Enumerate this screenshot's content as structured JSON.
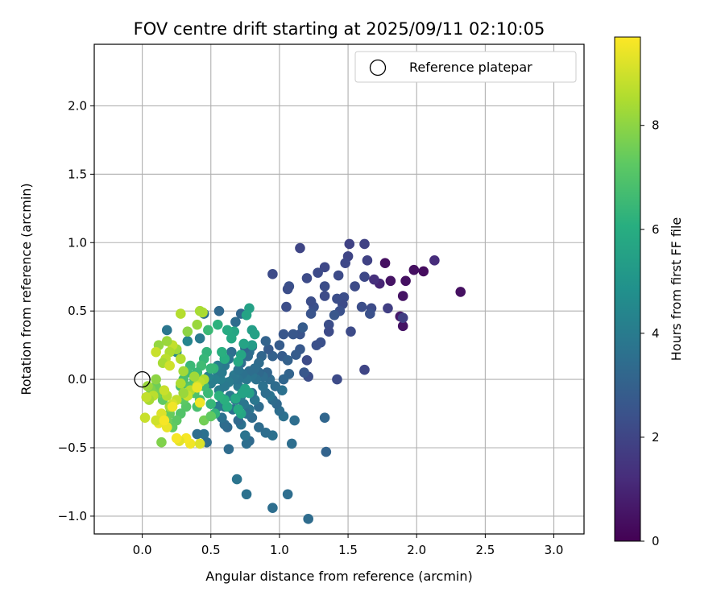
{
  "chart_data": {
    "type": "scatter",
    "title": "FOV centre drift starting at 2025/09/11 02:10:05",
    "xlabel": "Angular distance from reference (arcmin)",
    "ylabel": "Rotation from reference (arcmin)",
    "xlim": [
      -0.35,
      3.22
    ],
    "ylim": [
      -1.13,
      2.45
    ],
    "xticks": [
      "0.0",
      "0.5",
      "1.0",
      "1.5",
      "2.0",
      "2.5",
      "3.0"
    ],
    "yticks": [
      "−1.0",
      "−0.5",
      "0.0",
      "0.5",
      "1.0",
      "1.5",
      "2.0"
    ],
    "grid": true,
    "legend": {
      "position": "top-right",
      "entries": [
        "Reference platepar"
      ]
    },
    "reference_point": {
      "x": 0.0,
      "y": 0.0,
      "marker": "open-circle"
    },
    "colorbar": {
      "label": "Hours from first FF file",
      "colormap": "viridis",
      "range": [
        0,
        9.7
      ],
      "ticks": [
        "0",
        "2",
        "4",
        "6",
        "8"
      ]
    },
    "points": [
      [
        2.32,
        0.64,
        0.4
      ],
      [
        2.13,
        0.87,
        1.2
      ],
      [
        2.05,
        0.79,
        0.3
      ],
      [
        1.98,
        0.8,
        0.4
      ],
      [
        1.92,
        0.72,
        0.4
      ],
      [
        1.9,
        0.61,
        0.5
      ],
      [
        1.9,
        0.39,
        0.5
      ],
      [
        1.88,
        0.46,
        0.7
      ],
      [
        1.9,
        0.45,
        1.8
      ],
      [
        1.81,
        0.72,
        0.5
      ],
      [
        1.77,
        0.85,
        0.4
      ],
      [
        1.73,
        0.7,
        1.0
      ],
      [
        1.69,
        0.73,
        1.3
      ],
      [
        1.67,
        0.52,
        2.2
      ],
      [
        1.66,
        0.48,
        2.4
      ],
      [
        1.64,
        0.87,
        1.9
      ],
      [
        1.62,
        0.99,
        1.9
      ],
      [
        1.62,
        0.75,
        2.1
      ],
      [
        1.6,
        0.53,
        2.3
      ],
      [
        1.62,
        0.07,
        2.0
      ],
      [
        1.79,
        0.52,
        1.8
      ],
      [
        1.55,
        0.68,
        2.2
      ],
      [
        1.51,
        0.99,
        1.9
      ],
      [
        1.5,
        0.9,
        2.0
      ],
      [
        1.48,
        0.85,
        2.1
      ],
      [
        1.47,
        0.6,
        2.3
      ],
      [
        1.46,
        0.55,
        2.2
      ],
      [
        1.44,
        0.5,
        2.4
      ],
      [
        1.42,
        0.59,
        2.3
      ],
      [
        1.43,
        0.76,
        2.2
      ],
      [
        1.4,
        0.47,
        2.6
      ],
      [
        1.36,
        0.4,
        2.3
      ],
      [
        1.36,
        0.35,
        2.2
      ],
      [
        1.52,
        0.35,
        2.2
      ],
      [
        1.42,
        0.0,
        2.2
      ],
      [
        1.33,
        0.68,
        2.3
      ],
      [
        1.33,
        0.61,
        2.2
      ],
      [
        1.33,
        0.82,
        2.1
      ],
      [
        1.28,
        0.78,
        2.2
      ],
      [
        1.25,
        0.53,
        2.4
      ],
      [
        1.23,
        0.57,
        2.3
      ],
      [
        1.23,
        0.48,
        2.5
      ],
      [
        1.27,
        0.25,
        2.4
      ],
      [
        1.3,
        0.27,
        2.4
      ],
      [
        1.2,
        0.74,
        2.2
      ],
      [
        1.15,
        0.96,
        2.0
      ],
      [
        1.15,
        0.33,
        2.5
      ],
      [
        1.17,
        0.38,
        2.8
      ],
      [
        1.15,
        0.22,
        2.7
      ],
      [
        1.12,
        0.18,
        2.8
      ],
      [
        1.2,
        0.14,
        2.2
      ],
      [
        1.21,
        0.02,
        2.3
      ],
      [
        1.18,
        0.05,
        2.6
      ],
      [
        1.1,
        0.33,
        2.6
      ],
      [
        1.07,
        0.68,
        2.4
      ],
      [
        1.06,
        0.66,
        2.3
      ],
      [
        1.05,
        0.53,
        2.3
      ],
      [
        1.03,
        0.33,
        2.6
      ],
      [
        1.0,
        0.25,
        2.8
      ],
      [
        1.02,
        0.17,
        2.8
      ],
      [
        1.06,
        0.14,
        3.0
      ],
      [
        1.07,
        0.04,
        3.1
      ],
      [
        1.03,
        0.0,
        3.2
      ],
      [
        0.95,
        0.77,
        2.2
      ],
      [
        1.33,
        -0.28,
        3.2
      ],
      [
        1.34,
        -0.53,
        3.1
      ],
      [
        1.21,
        -1.02,
        3.4
      ],
      [
        1.06,
        -0.84,
        3.5
      ],
      [
        0.95,
        -0.94,
        3.5
      ],
      [
        0.76,
        -0.84,
        3.6
      ],
      [
        0.69,
        -0.73,
        3.7
      ],
      [
        1.09,
        -0.47,
        3.5
      ],
      [
        0.95,
        -0.41,
        3.6
      ],
      [
        0.9,
        -0.39,
        3.5
      ],
      [
        0.85,
        -0.35,
        3.4
      ],
      [
        0.78,
        -0.45,
        3.3
      ],
      [
        0.76,
        -0.47,
        3.5
      ],
      [
        0.75,
        -0.41,
        3.7
      ],
      [
        0.72,
        -0.33,
        3.6
      ],
      [
        0.7,
        -0.3,
        3.3
      ],
      [
        0.63,
        -0.51,
        3.4
      ],
      [
        0.62,
        -0.35,
        3.3
      ],
      [
        0.6,
        -0.33,
        3.4
      ],
      [
        0.58,
        -0.28,
        3.6
      ],
      [
        1.11,
        -0.3,
        3.5
      ],
      [
        1.03,
        -0.27,
        3.6
      ],
      [
        1.0,
        -0.23,
        3.5
      ],
      [
        0.98,
        -0.18,
        3.3
      ],
      [
        0.95,
        -0.15,
        3.4
      ],
      [
        0.93,
        -0.12,
        3.7
      ],
      [
        0.9,
        -0.1,
        3.5
      ],
      [
        0.88,
        -0.05,
        3.6
      ],
      [
        0.85,
        -0.2,
        3.4
      ],
      [
        0.82,
        -0.15,
        3.8
      ],
      [
        0.8,
        -0.1,
        3.6
      ],
      [
        0.8,
        -0.28,
        3.4
      ],
      [
        0.78,
        -0.22,
        3.7
      ],
      [
        0.76,
        -0.25,
        3.5
      ],
      [
        0.74,
        -0.18,
        3.8
      ],
      [
        0.72,
        -0.12,
        4.0
      ],
      [
        0.7,
        -0.05,
        3.9
      ],
      [
        0.68,
        -0.15,
        3.7
      ],
      [
        0.66,
        -0.22,
        3.6
      ],
      [
        0.64,
        -0.12,
        3.9
      ],
      [
        0.6,
        -0.2,
        3.8
      ],
      [
        0.58,
        -0.14,
        4.0
      ],
      [
        0.56,
        -0.08,
        4.1
      ],
      [
        0.55,
        -0.2,
        3.9
      ],
      [
        1.02,
        -0.08,
        3.6
      ],
      [
        0.97,
        -0.05,
        3.4
      ],
      [
        0.93,
        0.0,
        3.4
      ],
      [
        0.91,
        0.05,
        3.2
      ],
      [
        0.88,
        0.02,
        3.5
      ],
      [
        0.85,
        0.05,
        3.3
      ],
      [
        0.83,
        0.0,
        3.6
      ],
      [
        0.8,
        0.03,
        3.7
      ],
      [
        0.78,
        0.06,
        3.5
      ],
      [
        0.76,
        0.0,
        3.8
      ],
      [
        0.73,
        0.04,
        3.6
      ],
      [
        0.7,
        0.0,
        3.7
      ],
      [
        0.67,
        0.03,
        3.9
      ],
      [
        0.66,
        0.0,
        3.8
      ],
      [
        0.63,
        -0.02,
        4.0
      ],
      [
        0.6,
        -0.05,
        3.9
      ],
      [
        0.57,
        0.0,
        4.1
      ],
      [
        0.55,
        0.05,
        4.0
      ],
      [
        0.53,
        0.0,
        4.2
      ],
      [
        0.5,
        -0.03,
        4.1
      ],
      [
        0.48,
        0.02,
        4.3
      ],
      [
        0.46,
        -0.05,
        4.2
      ],
      [
        0.95,
        0.17,
        3.0
      ],
      [
        0.92,
        0.22,
        2.8
      ],
      [
        0.9,
        0.28,
        3.1
      ],
      [
        0.87,
        0.17,
        3.2
      ],
      [
        0.85,
        0.12,
        3.4
      ],
      [
        0.82,
        0.08,
        3.5
      ],
      [
        0.8,
        0.24,
        3.3
      ],
      [
        0.78,
        0.2,
        3.6
      ],
      [
        0.77,
        0.17,
        3.4
      ],
      [
        0.75,
        0.23,
        3.2
      ],
      [
        0.72,
        0.12,
        3.5
      ],
      [
        0.7,
        0.07,
        3.7
      ],
      [
        0.68,
        0.42,
        3.4
      ],
      [
        0.65,
        0.2,
        3.5
      ],
      [
        0.63,
        0.15,
        3.7
      ],
      [
        0.6,
        0.1,
        3.9
      ],
      [
        0.58,
        0.05,
        4.0
      ],
      [
        0.55,
        0.1,
        4.1
      ],
      [
        0.72,
        0.48,
        3.2
      ],
      [
        0.56,
        0.5,
        3.3
      ],
      [
        0.45,
        0.48,
        3.5
      ],
      [
        0.42,
        0.3,
        4.0
      ],
      [
        0.33,
        0.28,
        4.4
      ],
      [
        0.25,
        0.2,
        4.5
      ],
      [
        0.18,
        0.36,
        3.8
      ],
      [
        0.45,
        -0.4,
        3.6
      ],
      [
        0.4,
        -0.4,
        3.5
      ],
      [
        0.47,
        -0.46,
        3.4
      ],
      [
        0.78,
        0.52,
        5.5
      ],
      [
        0.76,
        0.47,
        5.6
      ],
      [
        0.8,
        0.36,
        5.4
      ],
      [
        0.82,
        0.33,
        5.5
      ],
      [
        0.8,
        0.25,
        5.3
      ],
      [
        0.74,
        0.26,
        5.6
      ],
      [
        0.72,
        0.18,
        5.7
      ],
      [
        0.7,
        0.13,
        5.8
      ],
      [
        0.67,
        0.35,
        5.7
      ],
      [
        0.65,
        0.3,
        5.8
      ],
      [
        0.62,
        0.36,
        5.9
      ],
      [
        0.6,
        0.15,
        6.0
      ],
      [
        0.58,
        0.2,
        6.1
      ],
      [
        0.55,
        0.4,
        6.2
      ],
      [
        0.52,
        0.08,
        6.3
      ],
      [
        0.5,
        0.08,
        6.4
      ],
      [
        0.48,
        0.36,
        6.5
      ],
      [
        0.47,
        0.2,
        6.3
      ],
      [
        0.45,
        0.15,
        6.4
      ],
      [
        0.43,
        0.1,
        6.6
      ],
      [
        0.4,
        0.05,
        6.5
      ],
      [
        0.38,
        0.0,
        6.7
      ],
      [
        0.35,
        0.1,
        6.5
      ],
      [
        0.33,
        0.05,
        6.6
      ],
      [
        0.3,
        0.0,
        6.8
      ],
      [
        0.28,
        -0.05,
        6.7
      ],
      [
        0.78,
        -0.1,
        5.5
      ],
      [
        0.75,
        -0.07,
        5.6
      ],
      [
        0.72,
        -0.25,
        5.7
      ],
      [
        0.7,
        -0.22,
        5.9
      ],
      [
        0.68,
        -0.14,
        5.8
      ],
      [
        0.73,
        -0.1,
        5.6
      ],
      [
        0.62,
        -0.2,
        6.0
      ],
      [
        0.6,
        -0.15,
        6.1
      ],
      [
        0.56,
        -0.12,
        6.2
      ],
      [
        0.53,
        -0.25,
        6.3
      ],
      [
        0.5,
        -0.18,
        6.4
      ],
      [
        0.48,
        -0.1,
        6.5
      ],
      [
        0.45,
        -0.05,
        6.6
      ],
      [
        0.42,
        -0.15,
        6.7
      ],
      [
        0.4,
        -0.2,
        6.8
      ],
      [
        0.38,
        -0.1,
        6.9
      ],
      [
        0.35,
        -0.05,
        7.0
      ],
      [
        0.32,
        -0.2,
        7.1
      ],
      [
        0.3,
        -0.15,
        7.2
      ],
      [
        0.28,
        -0.25,
        7.0
      ],
      [
        0.25,
        -0.3,
        7.2
      ],
      [
        0.22,
        -0.35,
        7.3
      ],
      [
        0.2,
        -0.25,
        7.4
      ],
      [
        0.18,
        -0.3,
        7.5
      ],
      [
        0.15,
        -0.15,
        7.3
      ],
      [
        0.12,
        -0.1,
        7.6
      ],
      [
        0.1,
        -0.05,
        7.5
      ],
      [
        0.08,
        -0.1,
        7.7
      ],
      [
        0.06,
        -0.07,
        7.8
      ],
      [
        0.44,
        0.49,
        8.5
      ],
      [
        0.42,
        0.5,
        8.4
      ],
      [
        0.4,
        0.4,
        8.2
      ],
      [
        0.33,
        0.35,
        8.0
      ],
      [
        0.28,
        0.48,
        8.6
      ],
      [
        0.25,
        0.22,
        8.3
      ],
      [
        0.22,
        0.25,
        8.8
      ],
      [
        0.2,
        0.2,
        8.5
      ],
      [
        0.18,
        0.28,
        8.2
      ],
      [
        0.17,
        0.15,
        8.7
      ],
      [
        0.15,
        0.12,
        8.4
      ],
      [
        0.12,
        0.25,
        8.1
      ],
      [
        0.1,
        0.2,
        8.9
      ],
      [
        0.45,
        0.0,
        8.5
      ],
      [
        0.42,
        -0.02,
        8.7
      ],
      [
        0.4,
        -0.05,
        9.0
      ],
      [
        0.38,
        0.02,
        8.3
      ],
      [
        0.35,
        -0.08,
        8.6
      ],
      [
        0.33,
        -0.12,
        8.9
      ],
      [
        0.3,
        -0.1,
        8.2
      ],
      [
        0.28,
        -0.03,
        8.5
      ],
      [
        0.25,
        -0.15,
        8.8
      ],
      [
        0.22,
        -0.18,
        9.1
      ],
      [
        0.2,
        -0.2,
        8.4
      ],
      [
        0.18,
        -0.12,
        8.6
      ],
      [
        0.16,
        -0.08,
        8.9
      ],
      [
        0.14,
        -0.25,
        9.2
      ],
      [
        0.12,
        -0.32,
        9.4
      ],
      [
        0.1,
        -0.3,
        9.0
      ],
      [
        0.08,
        -0.12,
        8.7
      ],
      [
        0.05,
        -0.15,
        8.4
      ],
      [
        0.03,
        -0.13,
        8.8
      ],
      [
        0.02,
        -0.28,
        8.9
      ],
      [
        0.42,
        -0.17,
        9.5
      ],
      [
        0.4,
        -0.06,
        9.4
      ],
      [
        0.35,
        -0.47,
        9.5
      ],
      [
        0.32,
        -0.43,
        9.6
      ],
      [
        0.42,
        -0.47,
        9.2
      ],
      [
        0.27,
        -0.45,
        9.3
      ],
      [
        0.25,
        -0.43,
        9.6
      ],
      [
        0.22,
        -0.2,
        9.5
      ],
      [
        0.18,
        -0.35,
        9.4
      ],
      [
        0.16,
        -0.3,
        9.6
      ],
      [
        0.14,
        -0.46,
        7.8
      ],
      [
        0.2,
        0.1,
        9.0
      ],
      [
        0.28,
        0.15,
        8.6
      ],
      [
        0.3,
        0.06,
        8.3
      ],
      [
        0.1,
        0.0,
        8.0
      ],
      [
        0.04,
        -0.05,
        8.2
      ],
      [
        0.45,
        -0.3,
        7.6
      ],
      [
        0.5,
        -0.27,
        7.3
      ]
    ]
  }
}
